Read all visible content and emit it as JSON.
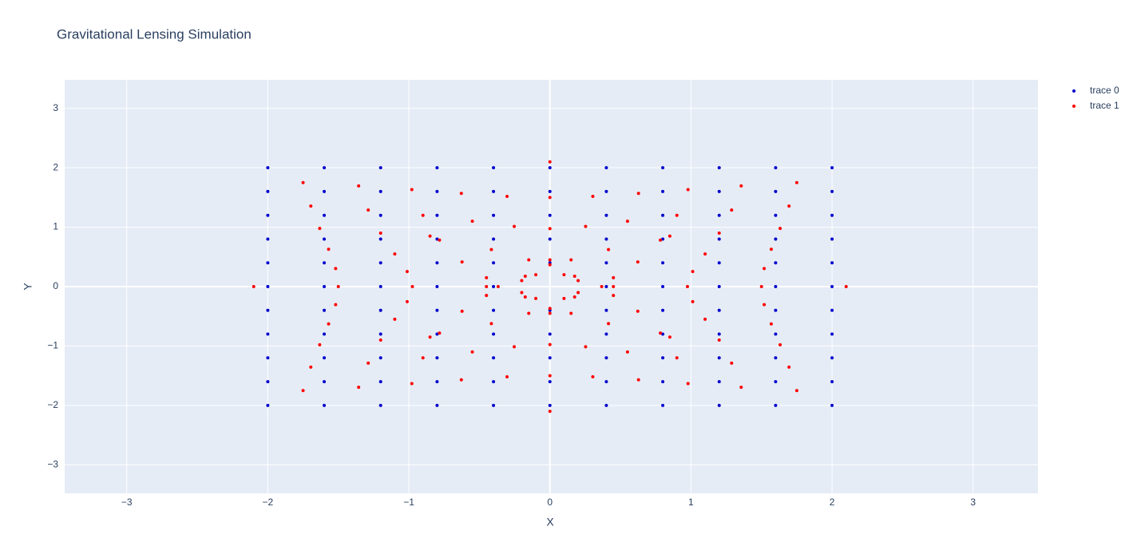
{
  "chart_data": {
    "type": "scatter",
    "title": "Gravitational Lensing Simulation",
    "x_label": "X",
    "y_label": "Y",
    "xlim": [
      -3.44,
      3.46
    ],
    "ylim": [
      -3.48,
      3.48
    ],
    "xticks": [
      {
        "value": -3,
        "label": "−3"
      },
      {
        "value": -2,
        "label": "−2"
      },
      {
        "value": -1,
        "label": "−1"
      },
      0,
      1,
      2,
      3
    ],
    "yticks": [
      {
        "value": -3,
        "label": "−3"
      },
      {
        "value": -2,
        "label": "−2"
      },
      {
        "value": -1,
        "label": "−1"
      },
      0,
      1,
      2,
      3
    ],
    "grid": true,
    "legend": "top-right",
    "series": [
      {
        "name": "trace 0",
        "color": "#0000cd",
        "x": [
          -2,
          -2,
          -2,
          -2,
          -2,
          -2,
          -2,
          -2,
          -2,
          -2,
          -2,
          -1.6,
          -1.6,
          -1.6,
          -1.6,
          -1.6,
          -1.6,
          -1.6,
          -1.6,
          -1.6,
          -1.6,
          -1.6,
          -1.2,
          -1.2,
          -1.2,
          -1.2,
          -1.2,
          -1.2,
          -1.2,
          -1.2,
          -1.2,
          -1.2,
          -1.2,
          -0.8,
          -0.8,
          -0.8,
          -0.8,
          -0.8,
          -0.8,
          -0.8,
          -0.8,
          -0.8,
          -0.8,
          -0.8,
          -0.4,
          -0.4,
          -0.4,
          -0.4,
          -0.4,
          -0.4,
          -0.4,
          -0.4,
          -0.4,
          -0.4,
          -0.4,
          0,
          0,
          0,
          0,
          0,
          0,
          0,
          0,
          0,
          0,
          0.4,
          0.4,
          0.4,
          0.4,
          0.4,
          0.4,
          0.4,
          0.4,
          0.4,
          0.4,
          0.4,
          0.8,
          0.8,
          0.8,
          0.8,
          0.8,
          0.8,
          0.8,
          0.8,
          0.8,
          0.8,
          0.8,
          1.2,
          1.2,
          1.2,
          1.2,
          1.2,
          1.2,
          1.2,
          1.2,
          1.2,
          1.2,
          1.2,
          1.6,
          1.6,
          1.6,
          1.6,
          1.6,
          1.6,
          1.6,
          1.6,
          1.6,
          1.6,
          1.6,
          2,
          2,
          2,
          2,
          2,
          2,
          2,
          2,
          2,
          2,
          2
        ],
        "y": [
          -2,
          -1.6,
          -1.2,
          -0.8,
          -0.4,
          0,
          0.4,
          0.8,
          1.2,
          1.6,
          2,
          -2,
          -1.6,
          -1.2,
          -0.8,
          -0.4,
          0,
          0.4,
          0.8,
          1.2,
          1.6,
          2,
          -2,
          -1.6,
          -1.2,
          -0.8,
          -0.4,
          0,
          0.4,
          0.8,
          1.2,
          1.6,
          2,
          -2,
          -1.6,
          -1.2,
          -0.8,
          -0.4,
          0,
          0.4,
          0.8,
          1.2,
          1.6,
          2,
          -2,
          -1.6,
          -1.2,
          -0.8,
          -0.4,
          0,
          0.4,
          0.8,
          1.2,
          1.6,
          2,
          -2,
          -1.6,
          -1.2,
          -0.8,
          -0.4,
          0.4,
          0.8,
          1.2,
          1.6,
          2,
          -2,
          -1.6,
          -1.2,
          -0.8,
          -0.4,
          0,
          0.4,
          0.8,
          1.2,
          1.6,
          2,
          -2,
          -1.6,
          -1.2,
          -0.8,
          -0.4,
          0,
          0.4,
          0.8,
          1.2,
          1.6,
          2,
          -2,
          -1.6,
          -1.2,
          -0.8,
          -0.4,
          0,
          0.4,
          0.8,
          1.2,
          1.6,
          2,
          -2,
          -1.6,
          -1.2,
          -0.8,
          -0.4,
          0,
          0.4,
          0.8,
          1.2,
          1.6,
          2,
          -2,
          -1.6,
          -1.2,
          -0.8,
          -0.4,
          0,
          0.4,
          0.8,
          1.2,
          1.6,
          2
        ]
      },
      {
        "name": "trace 1",
        "color": "#ff0000",
        "x": [
          -1.75,
          -1.695,
          -1.632,
          -1.569,
          -1.519,
          -1.5,
          -1.519,
          -1.569,
          -1.632,
          -1.695,
          -1.75,
          -1.356,
          -1.288,
          -1.2,
          -1.1,
          -1.012,
          -0.975,
          -1.012,
          -1.1,
          -1.2,
          -1.288,
          -1.356,
          -0.979,
          -0.9,
          -0.783,
          -0.623,
          -0.45,
          -0.367,
          -0.45,
          -0.623,
          -0.783,
          -0.9,
          -0.979,
          -0.628,
          -0.55,
          -0.415,
          -0.175,
          0.2,
          0.45,
          0.2,
          -0.175,
          -0.415,
          -0.55,
          -0.628,
          -0.304,
          -0.253,
          -0.15,
          0.1,
          0.85,
          2.1,
          0.85,
          0.1,
          -0.15,
          -0.253,
          -0.304,
          0,
          0,
          0,
          0,
          0,
          0,
          0,
          0,
          0,
          0,
          0.304,
          0.253,
          0.15,
          -0.1,
          -0.85,
          -2.1,
          -0.85,
          -0.1,
          0.15,
          0.253,
          0.304,
          0.628,
          0.55,
          0.415,
          0.175,
          -0.2,
          -0.45,
          -0.2,
          0.175,
          0.415,
          0.55,
          0.628,
          0.979,
          0.9,
          0.783,
          0.623,
          0.45,
          0.367,
          0.45,
          0.623,
          0.783,
          0.9,
          0.979,
          1.356,
          1.288,
          1.2,
          1.1,
          1.012,
          0.975,
          1.012,
          1.1,
          1.2,
          1.288,
          1.356,
          1.75,
          1.695,
          1.632,
          1.569,
          1.519,
          1.5,
          1.519,
          1.569,
          1.632,
          1.695,
          1.75
        ],
        "y": [
          -1.75,
          -1.356,
          -0.979,
          -0.628,
          -0.304,
          0,
          0.304,
          0.628,
          0.979,
          1.356,
          1.75,
          -1.695,
          -1.288,
          -0.9,
          -0.55,
          -0.253,
          0,
          0.253,
          0.55,
          0.9,
          1.288,
          1.695,
          -1.632,
          -1.2,
          -0.783,
          -0.415,
          -0.15,
          0,
          0.15,
          0.415,
          0.783,
          1.2,
          1.632,
          -1.569,
          -1.1,
          -0.623,
          -0.175,
          0.1,
          0,
          -0.1,
          0.175,
          0.623,
          1.1,
          1.569,
          -1.519,
          -1.012,
          -0.45,
          0.2,
          0.85,
          0,
          -0.85,
          -0.2,
          0.45,
          1.012,
          1.519,
          -1.5,
          -0.975,
          -0.367,
          0.45,
          2.1,
          -2.1,
          -0.45,
          0.367,
          0.975,
          1.5,
          -1.519,
          -1.012,
          -0.45,
          0.2,
          0.85,
          0,
          -0.85,
          -0.2,
          0.45,
          1.012,
          1.519,
          -1.569,
          -1.1,
          -0.623,
          -0.175,
          0.1,
          0,
          -0.1,
          0.175,
          0.623,
          1.1,
          1.569,
          -1.632,
          -1.2,
          -0.783,
          -0.415,
          -0.15,
          0,
          0.15,
          0.415,
          0.783,
          1.2,
          1.632,
          -1.695,
          -1.288,
          -0.9,
          -0.55,
          -0.253,
          0,
          0.253,
          0.55,
          0.9,
          1.288,
          1.695,
          -1.75,
          -1.356,
          -0.979,
          -0.628,
          -0.304,
          0,
          0.304,
          0.628,
          0.979,
          1.356,
          1.75
        ]
      }
    ]
  }
}
